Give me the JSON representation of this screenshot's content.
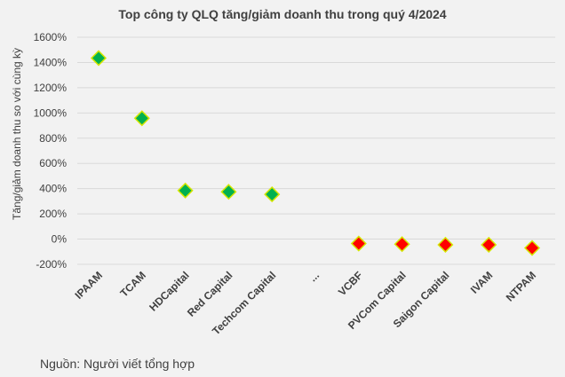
{
  "chart_data": {
    "type": "scatter",
    "title": "Top công ty QLQ tăng/giảm doanh thu trong quý 4/2024",
    "ylabel": "Tăng/giảm doanh thu so với cùng kỳ",
    "xlabel": "",
    "ylim": [
      -200,
      1600
    ],
    "yticks": [
      -200,
      0,
      200,
      400,
      600,
      800,
      1000,
      1200,
      1400,
      1600
    ],
    "ytick_labels": [
      "-200%",
      "0%",
      "200%",
      "400%",
      "600%",
      "800%",
      "1000%",
      "1200%",
      "1400%",
      "1600%"
    ],
    "grid": true,
    "legend": "none",
    "categories": [
      "IPAAM",
      "TCAM",
      "HDCapital",
      "Red Capital",
      "Techcom Capital",
      "...",
      "VCBF",
      "PVCom Capital",
      "Saigon Capital",
      "IVAM",
      "NTPAM"
    ],
    "values": [
      1435,
      958,
      385,
      375,
      355,
      null,
      -35,
      -40,
      -45,
      -45,
      -70
    ],
    "point_colors": [
      "#00b050",
      "#00b050",
      "#00b050",
      "#00b050",
      "#00b050",
      null,
      "#ff0000",
      "#ff0000",
      "#ff0000",
      "#ff0000",
      "#ff0000"
    ],
    "marker": "diamond",
    "marker_edge_color": "#d4e600"
  },
  "source_note": "Nguồn: Người viết tổng hợp"
}
